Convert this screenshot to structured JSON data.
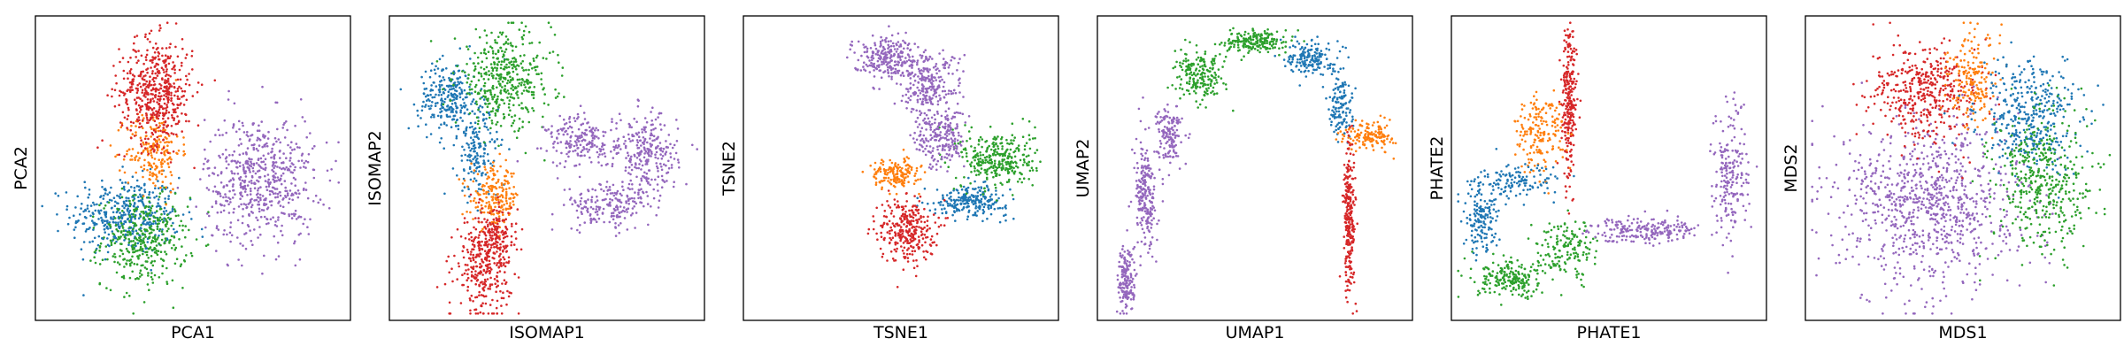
{
  "colors": {
    "blue": "#1f77b4",
    "orange": "#ff7f0e",
    "green": "#2ca02c",
    "red": "#d62728",
    "purple": "#9467bd"
  },
  "chart_data": [
    {
      "type": "scatter",
      "xlabel": "PCA1",
      "ylabel": "PCA2",
      "xlim": [
        0,
        1
      ],
      "ylim": [
        0,
        1
      ],
      "grid": false,
      "ticks": false,
      "series": [
        {
          "color_key": "blue",
          "clusters": [
            {
              "x": 0.28,
              "y": 0.34,
              "sx": 0.09,
              "sy": 0.065,
              "n": 420
            }
          ]
        },
        {
          "color_key": "green",
          "clusters": [
            {
              "x": 0.34,
              "y": 0.25,
              "sx": 0.07,
              "sy": 0.075,
              "n": 380
            }
          ]
        },
        {
          "color_key": "orange",
          "clusters": [
            {
              "x": 0.37,
              "y": 0.56,
              "sx": 0.045,
              "sy": 0.07,
              "n": 200
            }
          ]
        },
        {
          "color_key": "red",
          "clusters": [
            {
              "x": 0.38,
              "y": 0.76,
              "sx": 0.06,
              "sy": 0.09,
              "n": 520
            }
          ]
        },
        {
          "color_key": "purple",
          "clusters": [
            {
              "x": 0.72,
              "y": 0.46,
              "sx": 0.09,
              "sy": 0.11,
              "n": 580
            }
          ]
        }
      ]
    },
    {
      "type": "scatter",
      "xlabel": "ISOMAP1",
      "ylabel": "ISOMAP2",
      "xlim": [
        0,
        1
      ],
      "ylim": [
        0,
        1
      ],
      "grid": false,
      "ticks": false,
      "series": [
        {
          "color_key": "blue",
          "clusters": [
            {
              "x": 0.18,
              "y": 0.74,
              "sx": 0.05,
              "sy": 0.06,
              "n": 260
            },
            {
              "x": 0.27,
              "y": 0.55,
              "sx": 0.035,
              "sy": 0.08,
              "n": 160
            }
          ]
        },
        {
          "color_key": "green",
          "clusters": [
            {
              "x": 0.36,
              "y": 0.8,
              "sx": 0.08,
              "sy": 0.08,
              "n": 420
            }
          ]
        },
        {
          "color_key": "orange",
          "clusters": [
            {
              "x": 0.33,
              "y": 0.4,
              "sx": 0.04,
              "sy": 0.05,
              "n": 200
            }
          ]
        },
        {
          "color_key": "red",
          "clusters": [
            {
              "x": 0.29,
              "y": 0.17,
              "sx": 0.045,
              "sy": 0.08,
              "n": 320
            },
            {
              "x": 0.34,
              "y": 0.28,
              "sx": 0.03,
              "sy": 0.05,
              "n": 120
            }
          ]
        },
        {
          "color_key": "purple",
          "clusters": [
            {
              "x": 0.62,
              "y": 0.59,
              "sx": 0.06,
              "sy": 0.045,
              "n": 200
            },
            {
              "x": 0.83,
              "y": 0.54,
              "sx": 0.05,
              "sy": 0.07,
              "n": 260
            },
            {
              "x": 0.7,
              "y": 0.37,
              "sx": 0.07,
              "sy": 0.04,
              "n": 180
            }
          ]
        }
      ]
    },
    {
      "type": "scatter",
      "xlabel": "TSNE1",
      "ylabel": "TSNE2",
      "xlim": [
        0,
        1
      ],
      "ylim": [
        0,
        1
      ],
      "grid": false,
      "ticks": false,
      "series": [
        {
          "color_key": "blue",
          "clusters": [
            {
              "x": 0.73,
              "y": 0.39,
              "sx": 0.06,
              "sy": 0.025,
              "n": 240
            }
          ]
        },
        {
          "color_key": "orange",
          "clusters": [
            {
              "x": 0.48,
              "y": 0.48,
              "sx": 0.04,
              "sy": 0.025,
              "n": 160
            }
          ]
        },
        {
          "color_key": "green",
          "clusters": [
            {
              "x": 0.82,
              "y": 0.53,
              "sx": 0.06,
              "sy": 0.05,
              "n": 320
            }
          ]
        },
        {
          "color_key": "red",
          "clusters": [
            {
              "x": 0.52,
              "y": 0.29,
              "sx": 0.045,
              "sy": 0.055,
              "n": 300
            }
          ]
        },
        {
          "color_key": "purple",
          "clusters": [
            {
              "x": 0.45,
              "y": 0.88,
              "sx": 0.055,
              "sy": 0.035,
              "n": 240
            },
            {
              "x": 0.59,
              "y": 0.78,
              "sx": 0.055,
              "sy": 0.06,
              "n": 260
            },
            {
              "x": 0.63,
              "y": 0.6,
              "sx": 0.04,
              "sy": 0.05,
              "n": 200
            }
          ]
        }
      ]
    },
    {
      "type": "scatter",
      "xlabel": "UMAP1",
      "ylabel": "UMAP2",
      "xlim": [
        0,
        1
      ],
      "ylim": [
        0,
        1
      ],
      "grid": false,
      "ticks": false,
      "series": [
        {
          "color_key": "purple",
          "clusters": [
            {
              "x": 0.08,
              "y": 0.12,
              "sx": 0.015,
              "sy": 0.06,
              "n": 160
            },
            {
              "x": 0.14,
              "y": 0.4,
              "sx": 0.018,
              "sy": 0.09,
              "n": 220
            },
            {
              "x": 0.22,
              "y": 0.62,
              "sx": 0.02,
              "sy": 0.05,
              "n": 140
            }
          ]
        },
        {
          "color_key": "green",
          "clusters": [
            {
              "x": 0.32,
              "y": 0.81,
              "sx": 0.04,
              "sy": 0.04,
              "n": 200
            },
            {
              "x": 0.5,
              "y": 0.93,
              "sx": 0.05,
              "sy": 0.02,
              "n": 200
            }
          ]
        },
        {
          "color_key": "blue",
          "clusters": [
            {
              "x": 0.68,
              "y": 0.88,
              "sx": 0.035,
              "sy": 0.03,
              "n": 160
            },
            {
              "x": 0.78,
              "y": 0.72,
              "sx": 0.02,
              "sy": 0.06,
              "n": 140
            }
          ]
        },
        {
          "color_key": "orange",
          "clusters": [
            {
              "x": 0.88,
              "y": 0.61,
              "sx": 0.04,
              "sy": 0.025,
              "n": 140
            }
          ]
        },
        {
          "color_key": "red",
          "clusters": [
            {
              "x": 0.81,
              "y": 0.34,
              "sx": 0.01,
              "sy": 0.13,
              "n": 260
            }
          ]
        }
      ]
    },
    {
      "type": "scatter",
      "xlabel": "PHATE1",
      "ylabel": "PHATE2",
      "xlim": [
        0,
        1
      ],
      "ylim": [
        0,
        1
      ],
      "grid": false,
      "ticks": false,
      "series": [
        {
          "color_key": "red",
          "clusters": [
            {
              "x": 0.37,
              "y": 0.72,
              "sx": 0.012,
              "sy": 0.13,
              "n": 260
            }
          ]
        },
        {
          "color_key": "orange",
          "clusters": [
            {
              "x": 0.27,
              "y": 0.62,
              "sx": 0.04,
              "sy": 0.07,
              "n": 180
            }
          ]
        },
        {
          "color_key": "blue",
          "clusters": [
            {
              "x": 0.08,
              "y": 0.33,
              "sx": 0.03,
              "sy": 0.06,
              "n": 160
            },
            {
              "x": 0.2,
              "y": 0.45,
              "sx": 0.06,
              "sy": 0.03,
              "n": 120
            }
          ]
        },
        {
          "color_key": "green",
          "clusters": [
            {
              "x": 0.18,
              "y": 0.12,
              "sx": 0.06,
              "sy": 0.03,
              "n": 200
            },
            {
              "x": 0.36,
              "y": 0.22,
              "sx": 0.05,
              "sy": 0.05,
              "n": 160
            }
          ]
        },
        {
          "color_key": "purple",
          "clusters": [
            {
              "x": 0.62,
              "y": 0.29,
              "sx": 0.09,
              "sy": 0.02,
              "n": 220
            },
            {
              "x": 0.9,
              "y": 0.48,
              "sx": 0.03,
              "sy": 0.12,
              "n": 200
            }
          ]
        }
      ]
    },
    {
      "type": "scatter",
      "xlabel": "MDS1",
      "ylabel": "MDS2",
      "xlim": [
        0,
        1
      ],
      "ylim": [
        0,
        1
      ],
      "grid": false,
      "ticks": false,
      "series": [
        {
          "color_key": "purple",
          "clusters": [
            {
              "x": 0.4,
              "y": 0.38,
              "sx": 0.15,
              "sy": 0.14,
              "n": 900
            }
          ]
        },
        {
          "color_key": "red",
          "clusters": [
            {
              "x": 0.38,
              "y": 0.76,
              "sx": 0.09,
              "sy": 0.08,
              "n": 420
            }
          ]
        },
        {
          "color_key": "orange",
          "clusters": [
            {
              "x": 0.53,
              "y": 0.8,
              "sx": 0.04,
              "sy": 0.08,
              "n": 180
            }
          ]
        },
        {
          "color_key": "blue",
          "clusters": [
            {
              "x": 0.72,
              "y": 0.68,
              "sx": 0.08,
              "sy": 0.09,
              "n": 380
            }
          ]
        },
        {
          "color_key": "green",
          "clusters": [
            {
              "x": 0.76,
              "y": 0.45,
              "sx": 0.08,
              "sy": 0.12,
              "n": 420
            }
          ]
        }
      ]
    }
  ]
}
